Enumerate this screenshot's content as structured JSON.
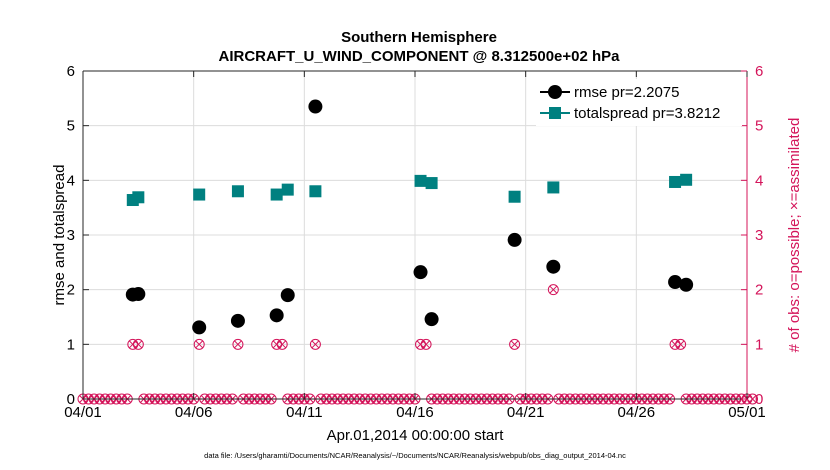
{
  "chart_data": {
    "type": "scatter",
    "title": "Southern Hemisphere",
    "subtitle": "AIRCRAFT_U_WIND_COMPONENT @ 8.312500e+02 hPa",
    "xlabel": "Apr.01,2014 00:00:00 start",
    "ylabel": "rmse and totalspread",
    "ylabel_right": "# of obs: o=possible; ×=assimilated",
    "footer": "data file: /Users/gharamti/Documents/NCAR/Reanalysis/~/Documents/NCAR/Reanalysis/webpub/obs_diag_output_2014-04.nc",
    "xlim": [
      0,
      30
    ],
    "ylim": [
      0,
      6
    ],
    "ylim_right": [
      0,
      6
    ],
    "x_ticks": [
      {
        "value": 0,
        "label": "04/01"
      },
      {
        "value": 5,
        "label": "04/06"
      },
      {
        "value": 10,
        "label": "04/11"
      },
      {
        "value": 15,
        "label": "04/16"
      },
      {
        "value": 20,
        "label": "04/21"
      },
      {
        "value": 25,
        "label": "04/26"
      },
      {
        "value": 30,
        "label": "05/01"
      }
    ],
    "y_ticks": [
      {
        "value": 0,
        "label": "0"
      },
      {
        "value": 1,
        "label": "1"
      },
      {
        "value": 2,
        "label": "2"
      },
      {
        "value": 3,
        "label": "3"
      },
      {
        "value": 4,
        "label": "4"
      },
      {
        "value": 5,
        "label": "5"
      },
      {
        "value": 6,
        "label": "6"
      }
    ],
    "y_ticks_right": [
      {
        "value": 0,
        "label": "0"
      },
      {
        "value": 1,
        "label": "1"
      },
      {
        "value": 2,
        "label": "2"
      },
      {
        "value": 3,
        "label": "3"
      },
      {
        "value": 4,
        "label": "4"
      },
      {
        "value": 5,
        "label": "5"
      },
      {
        "value": 6,
        "label": "6"
      }
    ],
    "grid": true,
    "legend_position": "top-right",
    "series": [
      {
        "name": "rmse",
        "legend_label": "rmse pr=2.2075",
        "color": "#000000",
        "marker": "circle",
        "x": [
          2.25,
          2.5,
          5.25,
          7.0,
          8.75,
          9.25,
          10.5,
          15.25,
          15.75,
          19.5,
          21.25,
          26.75,
          27.25
        ],
        "y": [
          1.91,
          1.92,
          1.31,
          1.43,
          1.53,
          1.9,
          5.35,
          2.32,
          1.46,
          2.91,
          2.42,
          2.14,
          2.09
        ]
      },
      {
        "name": "totalspread",
        "legend_label": "totalspread pr=3.8212",
        "color": "#008080",
        "marker": "square",
        "x": [
          2.25,
          2.5,
          5.25,
          7.0,
          8.75,
          9.25,
          10.5,
          15.25,
          15.75,
          19.5,
          21.25,
          26.75,
          27.25
        ],
        "y": [
          3.64,
          3.69,
          3.74,
          3.8,
          3.74,
          3.83,
          3.8,
          3.99,
          3.95,
          3.7,
          3.87,
          3.97,
          4.01
        ]
      },
      {
        "name": "obs_count",
        "color": "#d4145a",
        "axis": "right",
        "marker": "circle-x",
        "x_start": 0,
        "x_step": 0.25,
        "counts": [
          0,
          0,
          0,
          0,
          0,
          0,
          0,
          0,
          0,
          1,
          1,
          0,
          0,
          0,
          0,
          0,
          0,
          0,
          0,
          0,
          0,
          1,
          0,
          0,
          0,
          0,
          0,
          0,
          1,
          0,
          0,
          0,
          0,
          0,
          0,
          1,
          1,
          0,
          0,
          0,
          0,
          0,
          1,
          0,
          0,
          0,
          0,
          0,
          0,
          0,
          0,
          0,
          0,
          0,
          0,
          0,
          0,
          0,
          0,
          0,
          0,
          1,
          1,
          0,
          0,
          0,
          0,
          0,
          0,
          0,
          0,
          0,
          0,
          0,
          0,
          0,
          0,
          0,
          1,
          0,
          0,
          0,
          0,
          0,
          0,
          2,
          0,
          0,
          0,
          0,
          0,
          0,
          0,
          0,
          0,
          0,
          0,
          0,
          0,
          0,
          0,
          0,
          0,
          0,
          0,
          0,
          0,
          1,
          1,
          0,
          0,
          0,
          0,
          0,
          0,
          0,
          0,
          0,
          0,
          0,
          0,
          0
        ]
      }
    ]
  }
}
